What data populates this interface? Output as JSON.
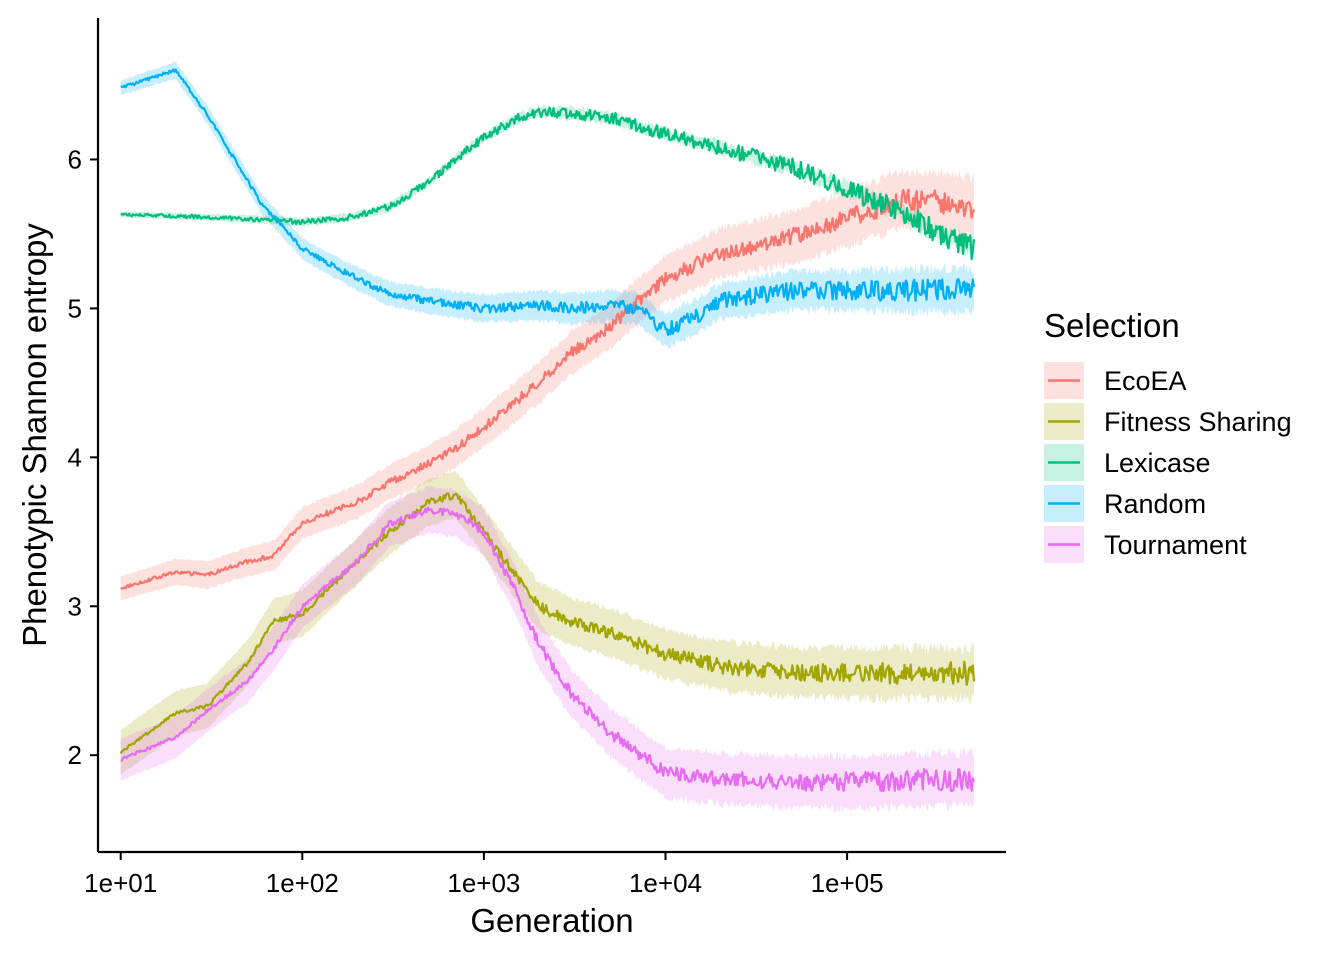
{
  "chart_data": {
    "type": "line",
    "xlabel": "Generation",
    "ylabel": "Phenotypic Shannon entropy",
    "x_scale": "log10",
    "xlim": [
      7.5,
      750000
    ],
    "ylim": [
      1.35,
      6.95
    ],
    "x_ticks": [
      10,
      100,
      1000,
      10000,
      100000
    ],
    "x_tick_labels": [
      "1e+01",
      "1e+02",
      "1e+03",
      "1e+04",
      "1e+05"
    ],
    "y_ticks": [
      2,
      3,
      4,
      5,
      6
    ],
    "y_tick_labels": [
      "2",
      "3",
      "4",
      "5",
      "6"
    ],
    "grid": false,
    "legend": {
      "title": "Selection",
      "position": "right"
    },
    "series": [
      {
        "name": "EcoEA",
        "color": "#F8766D",
        "x": [
          10,
          20,
          30,
          50,
          70,
          100,
          200,
          300,
          500,
          700,
          1000,
          2000,
          3000,
          5000,
          7000,
          10000,
          20000,
          50000,
          100000,
          200000,
          300000,
          500000
        ],
        "y": [
          3.12,
          3.23,
          3.21,
          3.3,
          3.34,
          3.56,
          3.7,
          3.83,
          3.96,
          4.06,
          4.2,
          4.5,
          4.7,
          4.88,
          5.05,
          5.2,
          5.37,
          5.48,
          5.6,
          5.73,
          5.72,
          5.68
        ],
        "band": 0.08,
        "band_end": 0.2
      },
      {
        "name": "Fitness Sharing",
        "color": "#A3A500",
        "x": [
          10,
          20,
          30,
          50,
          70,
          100,
          200,
          300,
          500,
          700,
          1000,
          2000,
          3000,
          5000,
          10000,
          20000,
          50000,
          100000,
          200000,
          500000
        ],
        "y": [
          2.02,
          2.28,
          2.33,
          2.62,
          2.9,
          2.95,
          3.3,
          3.5,
          3.7,
          3.75,
          3.5,
          3.0,
          2.9,
          2.82,
          2.68,
          2.6,
          2.56,
          2.55,
          2.55,
          2.55
        ],
        "band": 0.15,
        "band_end": 0.17
      },
      {
        "name": "Lexicase",
        "color": "#00BF7D",
        "x": [
          10,
          20,
          50,
          100,
          150,
          200,
          300,
          500,
          700,
          1000,
          1500,
          2000,
          3000,
          5000,
          10000,
          20000,
          50000,
          100000,
          200000,
          300000,
          500000
        ],
        "y": [
          5.63,
          5.62,
          5.6,
          5.58,
          5.6,
          5.62,
          5.68,
          5.85,
          6.0,
          6.15,
          6.27,
          6.32,
          6.31,
          6.28,
          6.17,
          6.08,
          5.95,
          5.8,
          5.65,
          5.52,
          5.4
        ],
        "band": 0.02,
        "band_end": 0.05
      },
      {
        "name": "Random",
        "color": "#00B0F6",
        "x": [
          10,
          20,
          30,
          40,
          60,
          100,
          150,
          200,
          300,
          500,
          1000,
          2000,
          3000,
          5000,
          7000,
          10000,
          15000,
          20000,
          50000,
          100000,
          200000,
          500000
        ],
        "y": [
          6.48,
          6.6,
          6.3,
          6.05,
          5.7,
          5.4,
          5.28,
          5.2,
          5.1,
          5.05,
          5.0,
          5.02,
          5.0,
          5.02,
          5.0,
          4.85,
          4.95,
          5.05,
          5.12,
          5.12,
          5.12,
          5.12
        ],
        "band": 0.05,
        "band_end": 0.15
      },
      {
        "name": "Tournament",
        "color": "#E76BF3",
        "x": [
          10,
          20,
          30,
          50,
          70,
          100,
          200,
          300,
          500,
          700,
          1000,
          1500,
          2000,
          3000,
          5000,
          10000,
          20000,
          50000,
          100000,
          200000,
          500000
        ],
        "y": [
          1.97,
          2.12,
          2.3,
          2.5,
          2.72,
          3.0,
          3.3,
          3.55,
          3.65,
          3.62,
          3.5,
          3.1,
          2.75,
          2.42,
          2.15,
          1.88,
          1.84,
          1.82,
          1.82,
          1.83,
          1.84
        ],
        "band": 0.14,
        "band_end": 0.18
      }
    ]
  }
}
